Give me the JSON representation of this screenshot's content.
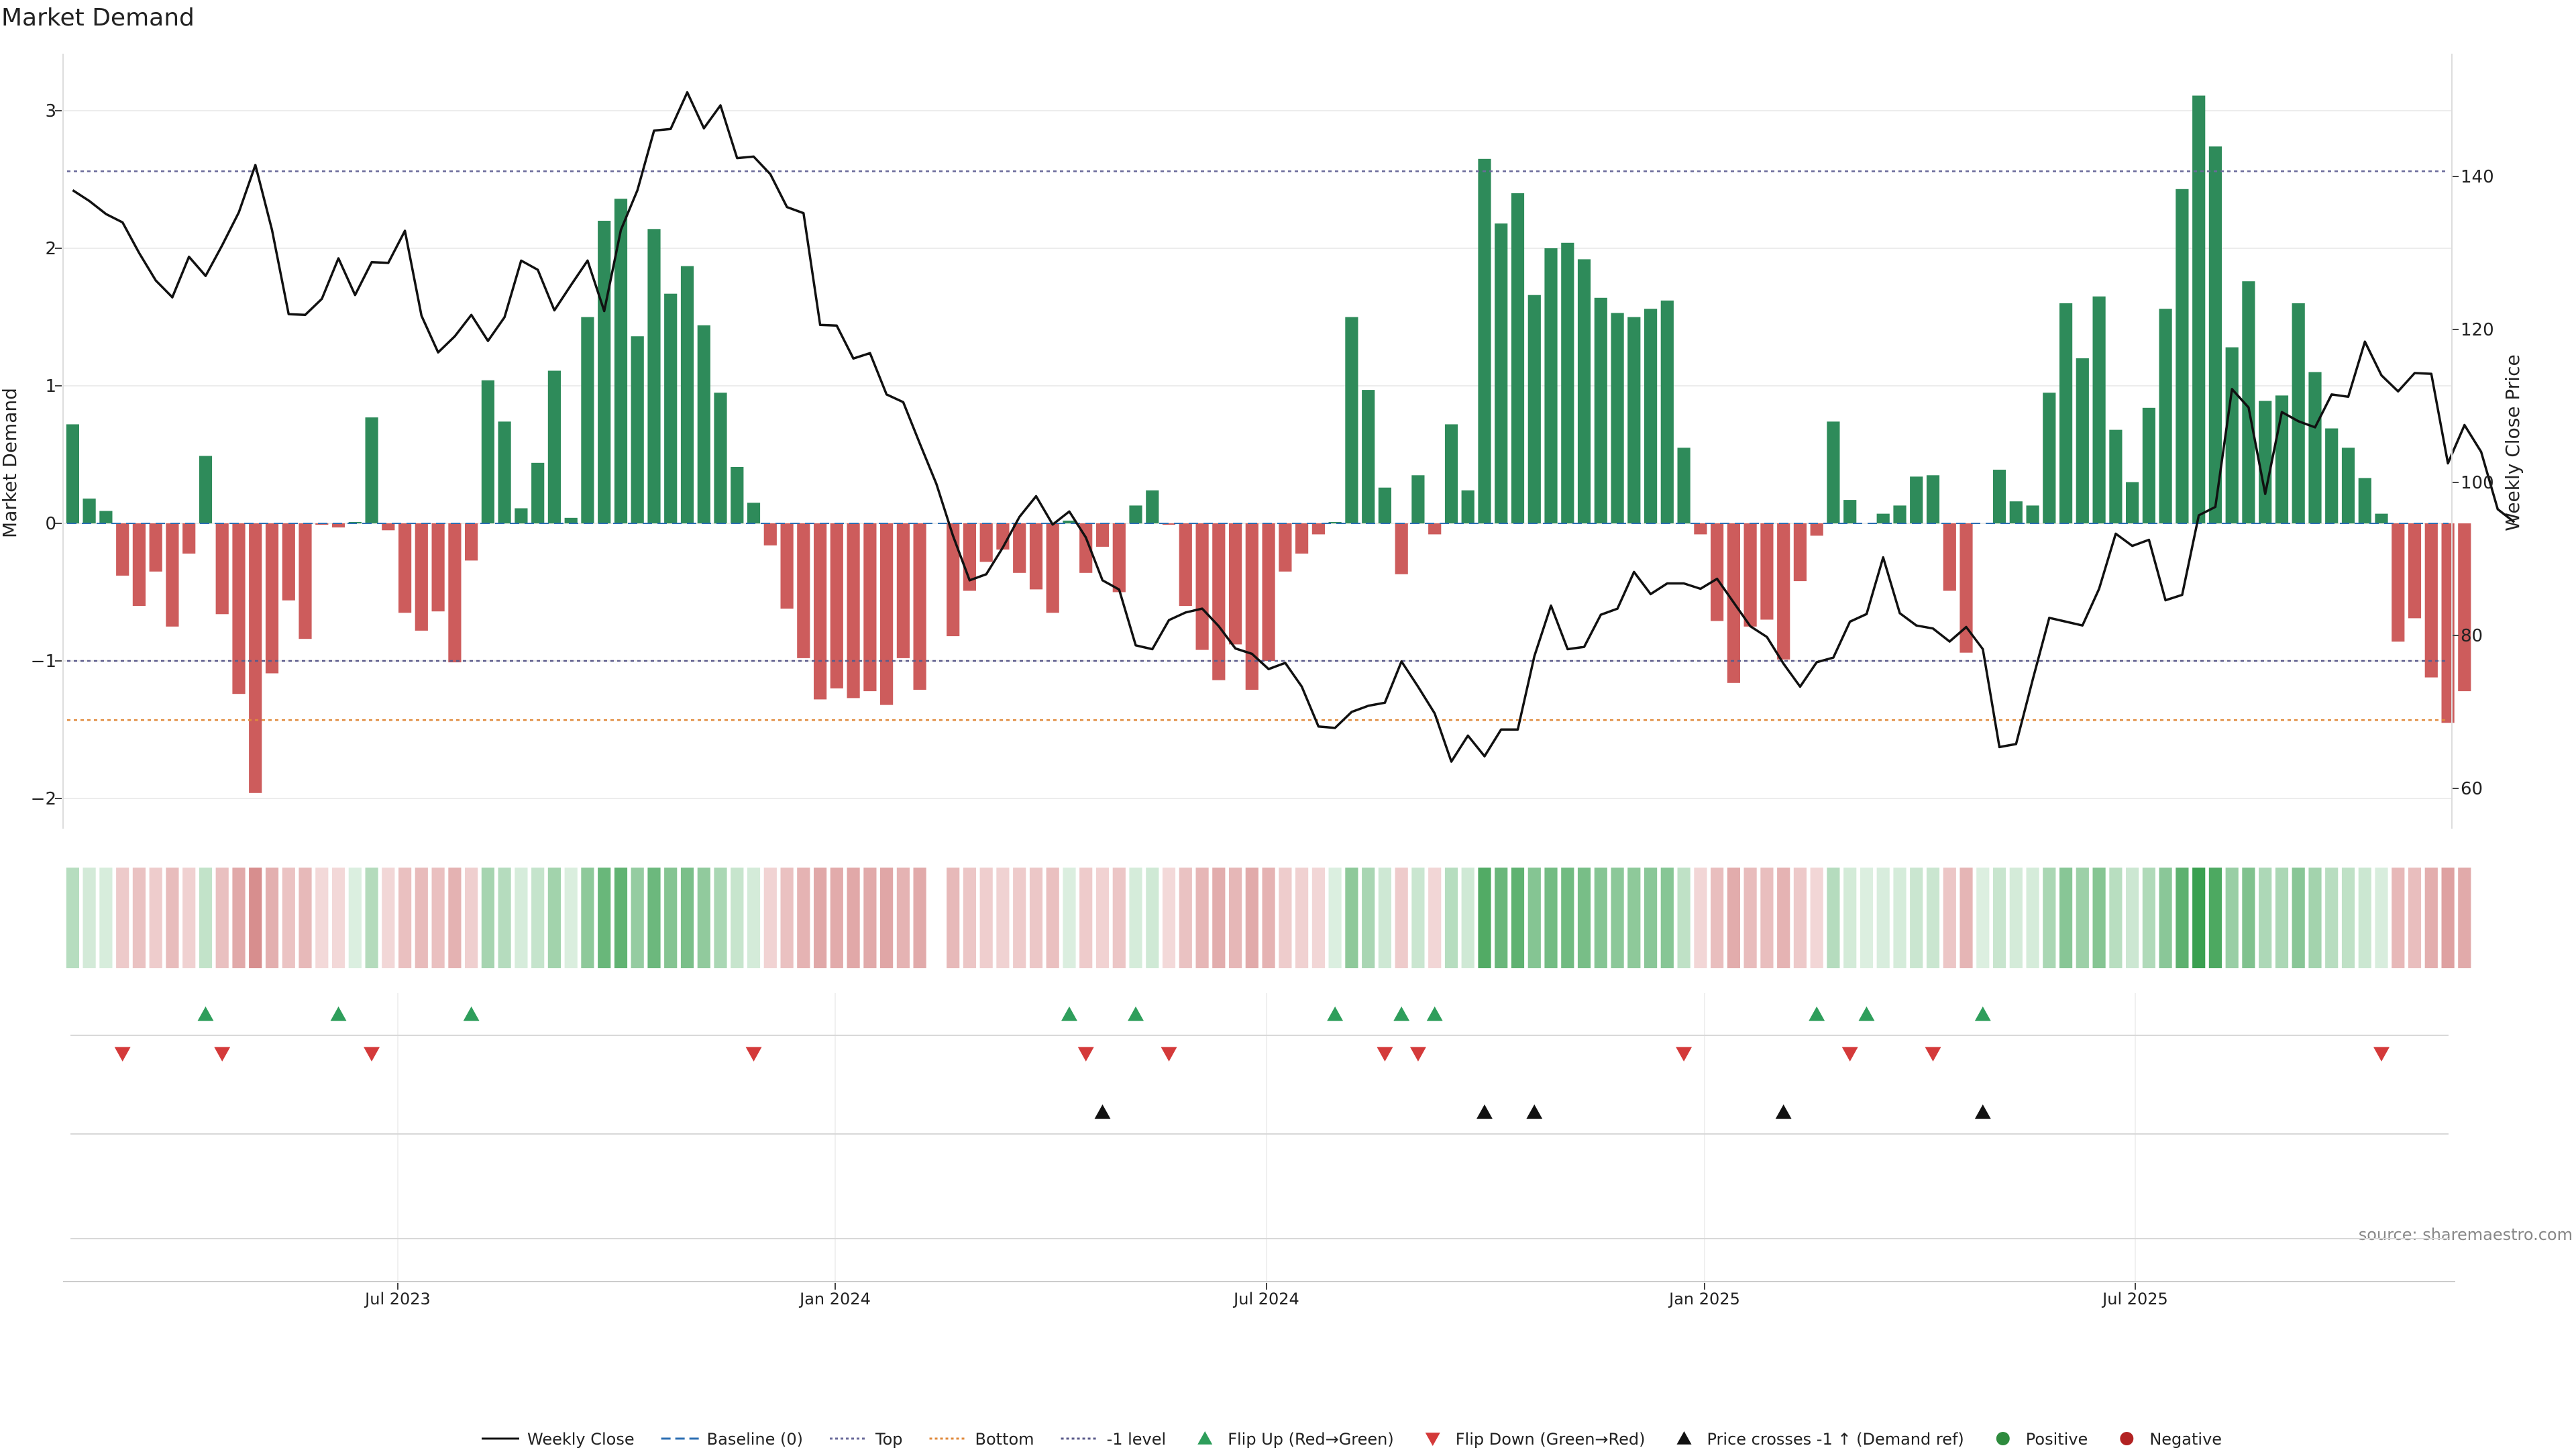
{
  "chart_data": {
    "type": "bar",
    "title": "Market Demand",
    "ylabel": "Market Demand",
    "y2label": "Weekly Close Price",
    "ylim": [
      -2.2,
      3.3
    ],
    "y2lim": [
      57.5,
      151
    ],
    "yticks": [
      "3",
      "2",
      "1",
      "0",
      "−1",
      "−2"
    ],
    "y2ticks": [
      "140",
      "120",
      "100",
      "80",
      "60"
    ],
    "xticks": [
      "Jul 2023",
      "Jan 2024",
      "Jul 2024",
      "Jan 2025",
      "Jul 2025"
    ],
    "reference_lines": [
      {
        "name": "Baseline (0)",
        "value": 0
      },
      {
        "name": "Top",
        "value": 2.56
      },
      {
        "name": "Bottom",
        "value": -1.43
      },
      {
        "name": "-1 level",
        "value": -1.0
      }
    ],
    "series": [
      {
        "name": "Market Demand",
        "kind": "bar",
        "values": [
          0.72,
          0.18,
          0.09,
          -0.38,
          -0.6,
          -0.35,
          -0.75,
          -0.22,
          0.49,
          -0.66,
          -1.24,
          -1.96,
          -1.09,
          -0.56,
          -0.84,
          -0.01,
          -0.03,
          0.01,
          0.77,
          -0.05,
          -0.65,
          -0.78,
          -0.64,
          -1.01,
          -0.27,
          1.04,
          0.74,
          0.11,
          0.44,
          1.11,
          0.04,
          1.5,
          2.2,
          2.36,
          1.36,
          2.14,
          1.67,
          1.87,
          1.44,
          0.95,
          0.41,
          0.15,
          -0.16,
          -0.62,
          -0.98,
          -1.28,
          -1.2,
          -1.27,
          -1.22,
          -1.32,
          -0.98,
          -1.21,
          null,
          -0.82,
          -0.49,
          -0.28,
          -0.19,
          -0.36,
          -0.48,
          -0.65,
          0.02,
          -0.36,
          -0.17,
          -0.5,
          0.13,
          0.24,
          -0.01,
          -0.6,
          -0.92,
          -1.14,
          -0.88,
          -1.21,
          -1.0,
          -0.35,
          -0.22,
          -0.08,
          0.01,
          1.5,
          0.97,
          0.26,
          -0.37,
          0.35,
          -0.08,
          0.72,
          0.24,
          2.65,
          2.18,
          2.4,
          1.66,
          2.0,
          2.04,
          1.92,
          1.64,
          1.53,
          1.5,
          1.56,
          1.62,
          0.55,
          -0.08,
          -0.71,
          -1.16,
          -0.75,
          -0.7,
          -0.99,
          -0.42,
          -0.09,
          0.74,
          0.17,
          0.0,
          0.07,
          0.13,
          0.34,
          0.35,
          -0.49,
          -0.94,
          0.0,
          0.39,
          0.16,
          0.13,
          0.95,
          1.6,
          1.2,
          1.65,
          0.68,
          0.3,
          0.84,
          1.56,
          2.43,
          3.11,
          2.74,
          1.28,
          1.76,
          0.89,
          0.93,
          1.6,
          1.1,
          0.69,
          0.55,
          0.33,
          0.07,
          -0.86,
          -0.69,
          -1.12,
          -1.45,
          -1.22
        ]
      },
      {
        "name": "Weekly Close",
        "kind": "line",
        "axis": "right",
        "values": [
          138.2,
          136.8,
          135.1,
          134.0,
          130.0,
          126.4,
          124.2,
          129.5,
          127.0,
          131.0,
          135.3,
          141.5,
          133.0,
          122.0,
          121.9,
          124.0,
          129.3,
          124.5,
          128.8,
          128.7,
          132.9,
          121.8,
          117.0,
          119.1,
          121.9,
          118.5,
          121.6,
          129.0,
          127.8,
          122.5,
          125.8,
          129.0,
          122.4,
          133.0,
          138.2,
          146.0,
          146.2,
          151.0,
          146.3,
          149.3,
          142.4,
          142.6,
          140.3,
          136.0,
          135.2,
          120.6,
          120.5,
          116.2,
          116.9,
          111.5,
          110.5,
          105.1,
          99.8,
          93.0,
          87.2,
          88.0,
          91.5,
          95.5,
          98.2,
          94.5,
          96.2,
          92.8,
          87.2,
          86.0,
          78.7,
          78.2,
          82.0,
          83.0,
          83.5,
          81.2,
          78.3,
          77.6,
          75.6,
          76.4,
          73.3,
          68.1,
          67.9,
          70.0,
          70.8,
          71.2,
          76.6,
          73.3,
          69.8,
          63.5,
          66.9,
          64.2,
          67.7,
          67.7,
          77.3,
          83.9,
          78.2,
          78.5,
          82.7,
          83.5,
          88.3,
          85.4,
          86.8,
          86.8,
          86.1,
          87.4,
          84.3,
          81.2,
          79.8,
          76.3,
          73.3,
          76.5,
          77.1,
          81.8,
          82.8,
          90.2,
          82.9,
          81.3,
          80.9,
          79.2,
          81.1,
          78.2,
          65.4,
          65.8,
          74.2,
          82.3,
          81.8,
          81.3,
          86.1,
          93.3,
          91.7,
          92.5,
          84.6,
          85.3,
          95.7,
          96.8,
          112.2,
          109.8,
          98.5,
          109.2,
          108.0,
          107.2,
          111.5,
          111.2,
          118.4,
          114.0,
          111.9,
          114.3,
          114.2,
          102.5,
          107.5,
          104.0,
          96.5,
          94.8
        ]
      }
    ],
    "flip_up_weeks": [
      8,
      16,
      24,
      60,
      64,
      76,
      80,
      82,
      105,
      108,
      115
    ],
    "flip_down_weeks": [
      3,
      9,
      18,
      41,
      61,
      66,
      79,
      81,
      97,
      107,
      112,
      139
    ],
    "price_crosses_up_weeks": [
      62,
      85,
      88,
      103,
      115
    ],
    "legend": [
      {
        "label": "Weekly Close",
        "style": "line",
        "color": "#111111"
      },
      {
        "label": "Baseline (0)",
        "style": "dash",
        "color": "#2c6fb3"
      },
      {
        "label": "Top",
        "style": "dot",
        "color": "#6a6a9a"
      },
      {
        "label": "Bottom",
        "style": "dot",
        "color": "#e08a3c"
      },
      {
        "label": "-1 level",
        "style": "dot",
        "color": "#5a5a8a"
      },
      {
        "label": "Flip Up (Red→Green)",
        "style": "tri-up",
        "color": "#2e9e5b"
      },
      {
        "label": "Flip Down (Green→Red)",
        "style": "tri-down",
        "color": "#d43a3a"
      },
      {
        "label": "Price crosses -1 ↑ (Demand ref)",
        "style": "tri-up",
        "color": "#111111"
      },
      {
        "label": "Positive",
        "style": "dot-marker",
        "color": "#2e8b3e"
      },
      {
        "label": "Negative",
        "style": "dot-marker",
        "color": "#b22222"
      }
    ],
    "legend_position": "bottom-center"
  },
  "source": "source: sharemaestro.com",
  "colors": {
    "positive": "#2e8b5a",
    "negative": "#cd5c5c",
    "price": "#111111"
  }
}
